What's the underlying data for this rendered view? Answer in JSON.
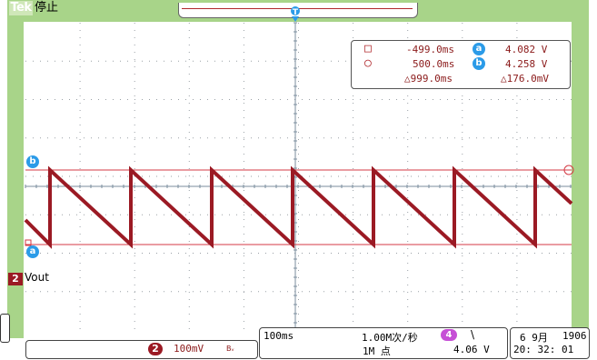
{
  "header": {
    "logo": "Tek",
    "run_status": "停止",
    "trigger_pos_marker": "T"
  },
  "cursor_readout": {
    "row1_symbol": "□",
    "row1_time": "-499.0ms",
    "row1_badge": "a",
    "row1_value": "4.082 V",
    "row2_symbol": "○",
    "row2_time": "500.0ms",
    "row2_badge": "b",
    "row2_value": "4.258 V",
    "delta_time": "△999.0ms",
    "delta_value": "△176.0mV"
  },
  "cursors": {
    "b_label": "b",
    "a_label": "a"
  },
  "channel": {
    "number": "2",
    "label": "Vout",
    "scale": "100mV",
    "bw_symbol": "Bᵥ",
    "color": "#9b1a24"
  },
  "timebase": {
    "scale": "100ms",
    "sample_rate": "1.00M次/秒",
    "record_length": "1M 点",
    "trigger_source": "4",
    "trigger_slope": "\\",
    "trigger_level": "4.06 V"
  },
  "datetime": {
    "date": "6 9月",
    "year": "1906",
    "time": "20: 32: 01"
  },
  "colors": {
    "frame_green": "#a8d489",
    "trace": "#9b1a24",
    "cursor_line": "#d43a44",
    "cursor_badge": "#2b9be8",
    "trigger_badge": "#c64fd6"
  }
}
